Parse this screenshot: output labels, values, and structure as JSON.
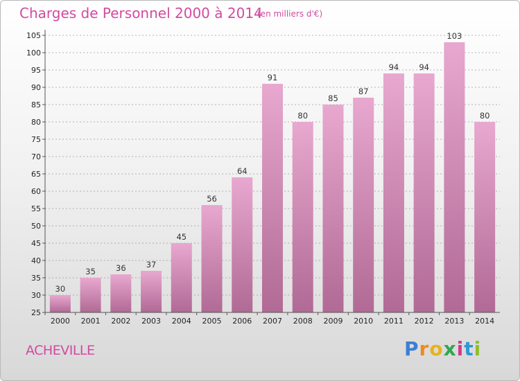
{
  "title": "Charges de Personnel 2000 à 2014",
  "subtitle": "(en milliers d'€)",
  "commune": "ACHEVILLE",
  "logo": {
    "letters": [
      "P",
      "r",
      "o",
      "x",
      "i",
      "t",
      "i"
    ],
    "colors": [
      "#3b7fd1",
      "#f08a1a",
      "#e8b21c",
      "#2fa84f",
      "#d23a8e",
      "#2b9ad6",
      "#8fbf2a"
    ]
  },
  "colors": {
    "accent": "#d24aa0",
    "bar_top": "#e8a8cf",
    "bar_bottom": "#b06a95",
    "grid": "#9a9a9a"
  },
  "chart_data": {
    "type": "bar",
    "title": "Charges de Personnel 2000 à 2014",
    "categories": [
      "2000",
      "2001",
      "2002",
      "2003",
      "2004",
      "2005",
      "2006",
      "2007",
      "2008",
      "2009",
      "2010",
      "2011",
      "2012",
      "2013",
      "2014"
    ],
    "values": [
      30,
      35,
      36,
      37,
      45,
      56,
      64,
      91,
      80,
      85,
      87,
      94,
      94,
      103,
      80
    ],
    "ylim": [
      25,
      105
    ],
    "yticks": [
      25,
      30,
      35,
      40,
      45,
      50,
      55,
      60,
      65,
      70,
      75,
      80,
      85,
      90,
      95,
      100,
      105
    ],
    "grid": true
  }
}
